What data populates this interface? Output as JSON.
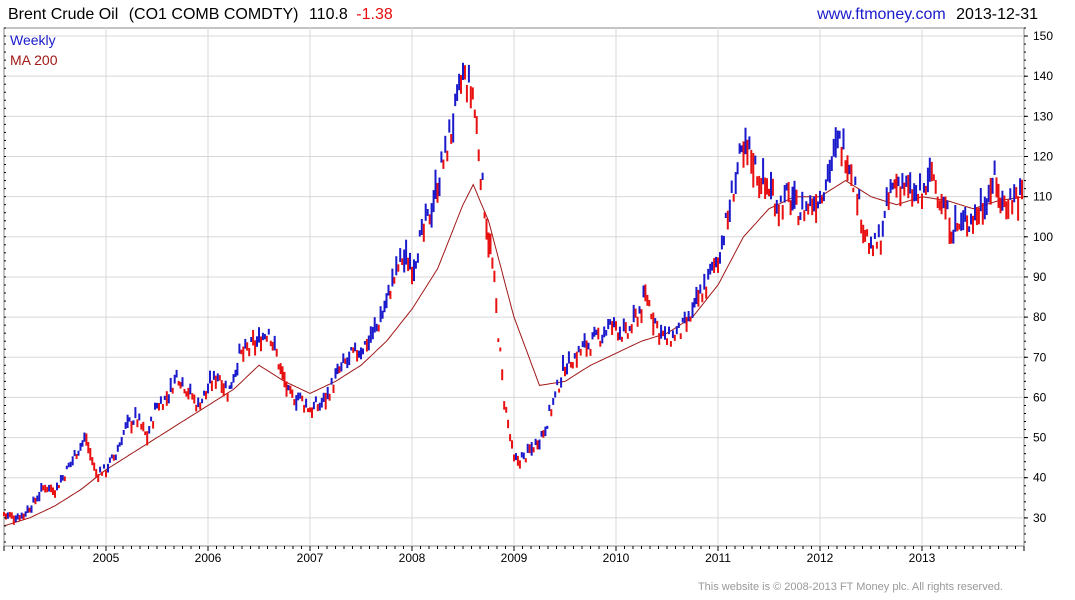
{
  "header": {
    "name": "Brent Crude Oil",
    "symbol": "(CO1 COMB COMDTY)",
    "last": "110.8",
    "change": "-1.38",
    "site": "www.ftmoney.com",
    "date": "2013-12-31"
  },
  "legend": {
    "weekly": "Weekly",
    "ma": "MA 200"
  },
  "footer": {
    "copyright": "This website is © 2008-2013 FT Money plc. All rights reserved."
  },
  "colors": {
    "up": "#1a1acc",
    "down": "#e81010",
    "ma": "#a01818",
    "grid": "#d8d8d8",
    "axis": "#000000",
    "site": "#1a1acc",
    "change": "#e81010"
  },
  "chart_data": {
    "type": "line",
    "x_unit": "year",
    "x_ticks": [
      "2005",
      "2006",
      "2007",
      "2008",
      "2009",
      "2010",
      "2011",
      "2012",
      "2013"
    ],
    "y_ticks": [
      30,
      40,
      50,
      60,
      70,
      80,
      90,
      100,
      110,
      120,
      130,
      140,
      150
    ],
    "xlim": [
      2004.0,
      2014.0
    ],
    "ylim": [
      23,
      152
    ],
    "y_axis_position": "right",
    "grid": true,
    "legend": "top-left",
    "series": [
      {
        "name": "Weekly",
        "style": "bars",
        "x": [
          2004.0,
          2004.1,
          2004.2,
          2004.3,
          2004.4,
          2004.5,
          2004.6,
          2004.7,
          2004.8,
          2004.9,
          2005.0,
          2005.1,
          2005.2,
          2005.3,
          2005.4,
          2005.5,
          2005.6,
          2005.7,
          2005.8,
          2005.9,
          2006.0,
          2006.1,
          2006.2,
          2006.3,
          2006.4,
          2006.5,
          2006.6,
          2006.7,
          2006.8,
          2006.9,
          2007.0,
          2007.1,
          2007.2,
          2007.3,
          2007.4,
          2007.5,
          2007.6,
          2007.7,
          2007.8,
          2007.9,
          2008.0,
          2008.1,
          2008.2,
          2008.3,
          2008.4,
          2008.5,
          2008.6,
          2008.7,
          2008.8,
          2008.9,
          2009.0,
          2009.1,
          2009.2,
          2009.3,
          2009.4,
          2009.5,
          2009.6,
          2009.7,
          2009.8,
          2009.9,
          2010.0,
          2010.1,
          2010.2,
          2010.3,
          2010.4,
          2010.5,
          2010.6,
          2010.7,
          2010.8,
          2010.9,
          2011.0,
          2011.1,
          2011.2,
          2011.3,
          2011.4,
          2011.5,
          2011.6,
          2011.7,
          2011.8,
          2011.9,
          2012.0,
          2012.1,
          2012.2,
          2012.3,
          2012.4,
          2012.5,
          2012.6,
          2012.7,
          2012.8,
          2012.9,
          2013.0,
          2013.1,
          2013.2,
          2013.3,
          2013.4,
          2013.5,
          2013.6,
          2013.7,
          2013.8,
          2013.9,
          2014.0
        ],
        "y": [
          31,
          30,
          31,
          34,
          38,
          37,
          41,
          46,
          50,
          41,
          42,
          46,
          53,
          55,
          50,
          58,
          60,
          66,
          62,
          58,
          62,
          66,
          61,
          70,
          72,
          74,
          77,
          68,
          60,
          60,
          57,
          58,
          62,
          67,
          70,
          72,
          75,
          80,
          88,
          95,
          93,
          100,
          108,
          118,
          128,
          140,
          135,
          110,
          90,
          60,
          44,
          45,
          48,
          52,
          60,
          68,
          70,
          73,
          74,
          77,
          78,
          75,
          80,
          85,
          78,
          74,
          76,
          78,
          84,
          89,
          95,
          105,
          118,
          122,
          115,
          112,
          108,
          110,
          106,
          108,
          110,
          118,
          124,
          118,
          106,
          96,
          100,
          112,
          114,
          110,
          110,
          116,
          108,
          102,
          103,
          105,
          108,
          114,
          108,
          110,
          111
        ]
      },
      {
        "name": "MA 200",
        "style": "line",
        "x": [
          2004.0,
          2004.25,
          2004.5,
          2004.75,
          2005.0,
          2005.25,
          2005.5,
          2005.75,
          2006.0,
          2006.25,
          2006.5,
          2006.75,
          2007.0,
          2007.25,
          2007.5,
          2007.75,
          2008.0,
          2008.25,
          2008.5,
          2008.6,
          2008.75,
          2009.0,
          2009.25,
          2009.5,
          2009.75,
          2010.0,
          2010.25,
          2010.5,
          2010.75,
          2011.0,
          2011.25,
          2011.5,
          2011.75,
          2012.0,
          2012.25,
          2012.5,
          2012.75,
          2013.0,
          2013.25,
          2013.5,
          2013.75,
          2014.0
        ],
        "y": [
          28,
          30,
          33,
          37,
          42,
          46,
          50,
          54,
          58,
          62,
          68,
          64,
          61,
          64,
          68,
          74,
          82,
          92,
          108,
          113,
          104,
          80,
          63,
          64,
          68,
          71,
          74,
          76,
          80,
          88,
          100,
          107,
          110,
          110,
          114,
          110,
          108,
          110,
          109,
          107,
          109,
          110
        ]
      }
    ]
  }
}
